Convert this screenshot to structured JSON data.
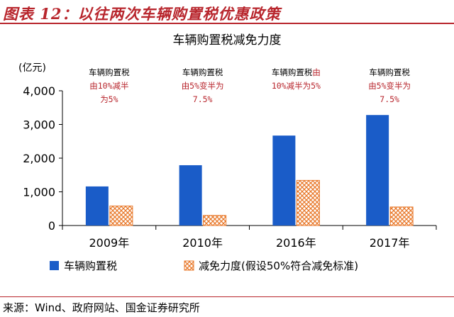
{
  "figure_title": "图表 12：以往两次车辆购置税优惠政策",
  "source": "来源：Wind、政府网站、国金证券研究所",
  "colors": {
    "accent": "#b8262d",
    "series_tax": "#1a5cc8",
    "series_cut": "#e8782a"
  },
  "chart_data": {
    "type": "bar",
    "title": "车辆购置税减免力度",
    "ylabel": "(亿元)",
    "ylim": [
      0,
      4000
    ],
    "yticks": [
      0,
      1000,
      2000,
      3000,
      4000
    ],
    "ytick_labels": [
      "0",
      "1,000",
      "2,000",
      "3,000",
      "4,000"
    ],
    "categories": [
      "2009年",
      "2010年",
      "2016年",
      "2017年"
    ],
    "series": [
      {
        "name": "车辆购置税",
        "values": [
          1160,
          1790,
          2670,
          3280
        ]
      },
      {
        "name": "减免力度(假设50%符合减免标准)",
        "values": [
          580,
          300,
          1340,
          550
        ]
      }
    ],
    "annotations": [
      {
        "category": "2009年",
        "lines": [
          [
            {
              "text": "车辆购置税",
              "color": "black"
            }
          ],
          [
            {
              "text": "由10%减半",
              "color": "red"
            }
          ],
          [
            {
              "text": "为5%",
              "color": "red"
            }
          ]
        ]
      },
      {
        "category": "2010年",
        "lines": [
          [
            {
              "text": "车辆购置税",
              "color": "black"
            }
          ],
          [
            {
              "text": "由5%变半为",
              "color": "red"
            }
          ],
          [
            {
              "text": "7.5%",
              "color": "red"
            }
          ]
        ]
      },
      {
        "category": "2016年",
        "lines": [
          [
            {
              "text": "车辆购置税",
              "color": "black"
            },
            {
              "text": "由",
              "color": "red"
            }
          ],
          [
            {
              "text": "10%减半为5%",
              "color": "red"
            }
          ]
        ]
      },
      {
        "category": "2017年",
        "lines": [
          [
            {
              "text": "车辆购置税",
              "color": "black"
            }
          ],
          [
            {
              "text": "由5%变半为",
              "color": "red"
            }
          ],
          [
            {
              "text": "7.5%",
              "color": "red"
            }
          ]
        ]
      }
    ],
    "grid": false,
    "legend": "bottom"
  }
}
